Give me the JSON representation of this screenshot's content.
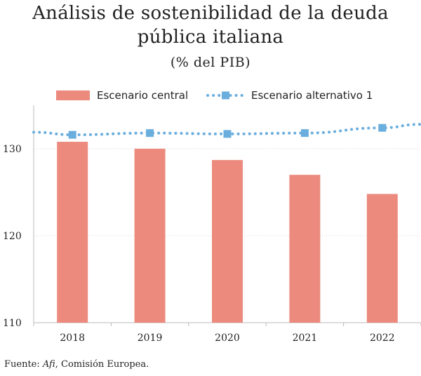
{
  "title_line1": "Análisis de sostenibilidad de la deuda",
  "title_line2": "pública italiana",
  "subtitle": "(% del PIB)",
  "source": {
    "prefix": "Fuente: ",
    "afi": "Afi",
    "separator": ", ",
    "rest": "Comisión Europea."
  },
  "colors": {
    "bar": "#ec8a7e",
    "line": "#6aaede",
    "grid": "#d9d9d9",
    "axis": "#bbbbbb",
    "text": "#222222"
  },
  "chart_data": {
    "type": "bar",
    "categories": [
      "2018",
      "2019",
      "2020",
      "2021",
      "2022"
    ],
    "ylim": [
      110,
      135
    ],
    "yticks": [
      110,
      120,
      130
    ],
    "ytick_labels": [
      "110",
      "120",
      "130"
    ],
    "grid": true,
    "legend_position": "top",
    "series": [
      {
        "name": "Escenario central",
        "kind": "bar",
        "values": [
          130.8,
          130.0,
          128.7,
          127.0,
          124.8
        ]
      },
      {
        "name": "Escenario alternativo 1",
        "kind": "line",
        "style": "dotted-square-markers",
        "values": [
          131.6,
          131.8,
          131.7,
          131.8,
          132.4
        ],
        "extends_beyond_categories": true,
        "left_value": 131.9,
        "right_value": 132.8
      }
    ]
  }
}
